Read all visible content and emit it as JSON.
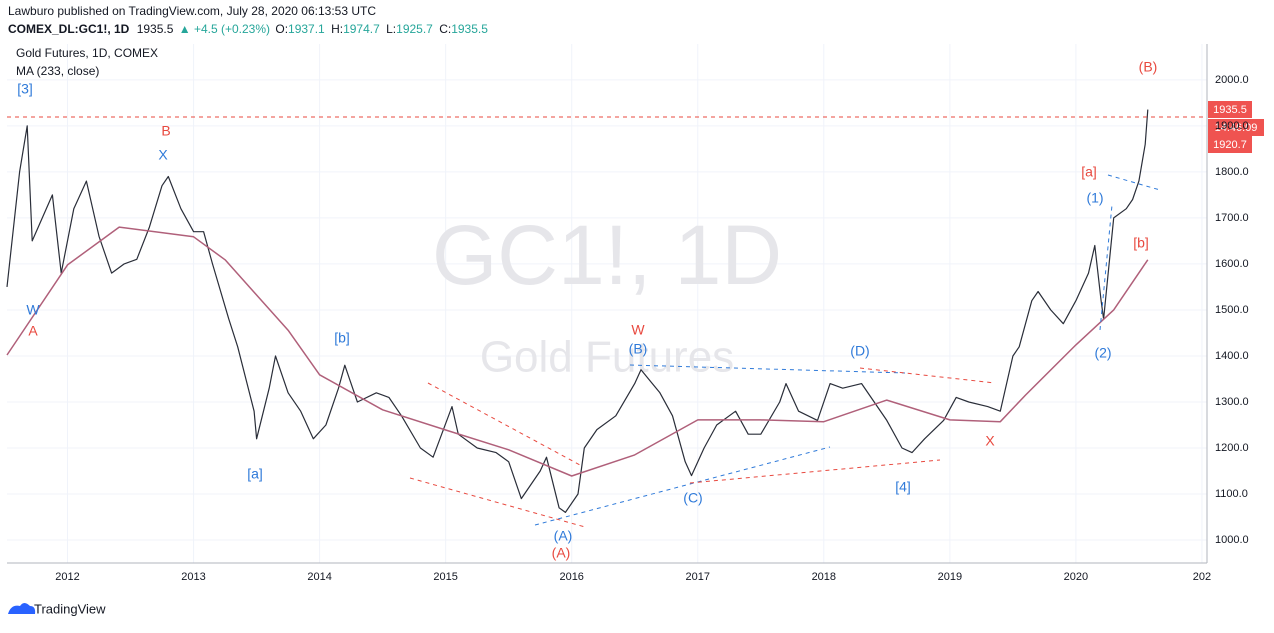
{
  "header": {
    "publisher": "Lawburo published on TradingView.com, July 28, 2020 06:13:53 UTC",
    "symbol": "COMEX_DL:GC1!, 1D",
    "last": "1935.5",
    "change": "▲ +4.5 (+0.23%)",
    "ohlc": [
      {
        "label": "O:",
        "value": "1937.1"
      },
      {
        "label": "H:",
        "value": "1974.7"
      },
      {
        "label": "L:",
        "value": "1925.7"
      },
      {
        "label": "C:",
        "value": "1935.5"
      }
    ]
  },
  "chart_data": {
    "type": "line",
    "watermark": [
      "GC1!, 1D",
      "Gold Futures"
    ],
    "series": [
      {
        "name": "Gold Futures, 1D, COMEX",
        "color": "#2a2e39",
        "x": [
          2011.52,
          2011.62,
          2011.68,
          2011.72,
          2011.8,
          2011.88,
          2011.95,
          2012.05,
          2012.15,
          2012.25,
          2012.35,
          2012.45,
          2012.55,
          2012.65,
          2012.75,
          2012.8,
          2012.9,
          2013.0,
          2013.08,
          2013.15,
          2013.28,
          2013.35,
          2013.48,
          2013.5,
          2013.6,
          2013.65,
          2013.75,
          2013.85,
          2013.95,
          2014.05,
          2014.15,
          2014.2,
          2014.3,
          2014.45,
          2014.55,
          2014.65,
          2014.8,
          2014.9,
          2015.05,
          2015.1,
          2015.25,
          2015.4,
          2015.5,
          2015.6,
          2015.75,
          2015.8,
          2015.9,
          2015.95,
          2016.05,
          2016.1,
          2016.2,
          2016.35,
          2016.5,
          2016.55,
          2016.7,
          2016.8,
          2016.9,
          2016.95,
          2017.05,
          2017.15,
          2017.3,
          2017.4,
          2017.5,
          2017.65,
          2017.7,
          2017.8,
          2017.95,
          2018.05,
          2018.15,
          2018.3,
          2018.4,
          2018.5,
          2018.62,
          2018.7,
          2018.8,
          2018.95,
          2019.05,
          2019.15,
          2019.3,
          2019.4,
          2019.5,
          2019.55,
          2019.65,
          2019.7,
          2019.8,
          2019.9,
          2020.0,
          2020.1,
          2020.15,
          2020.2,
          2020.22,
          2020.3,
          2020.4,
          2020.45,
          2020.5,
          2020.55,
          2020.57
        ],
        "values": [
          1550,
          1800,
          1900,
          1650,
          1700,
          1750,
          1580,
          1720,
          1780,
          1660,
          1580,
          1600,
          1610,
          1680,
          1770,
          1790,
          1720,
          1670,
          1670,
          1600,
          1480,
          1420,
          1280,
          1220,
          1330,
          1400,
          1320,
          1280,
          1220,
          1250,
          1330,
          1380,
          1300,
          1320,
          1310,
          1270,
          1200,
          1180,
          1290,
          1230,
          1200,
          1190,
          1170,
          1090,
          1150,
          1180,
          1070,
          1060,
          1100,
          1200,
          1240,
          1270,
          1340,
          1370,
          1320,
          1270,
          1170,
          1140,
          1200,
          1250,
          1280,
          1230,
          1230,
          1300,
          1340,
          1280,
          1260,
          1340,
          1330,
          1340,
          1300,
          1260,
          1200,
          1190,
          1220,
          1260,
          1310,
          1300,
          1290,
          1280,
          1400,
          1420,
          1520,
          1540,
          1500,
          1470,
          1520,
          1580,
          1640,
          1520,
          1480,
          1700,
          1720,
          1740,
          1780,
          1860,
          1935.5
        ]
      },
      {
        "name": "MA (233, close)",
        "color": "#b0607a",
        "x": [
          2011.52,
          2012.0,
          2012.41,
          2013.0,
          2013.25,
          2013.75,
          2014.0,
          2014.5,
          2015.0,
          2015.5,
          2016.0,
          2016.5,
          2017.0,
          2017.5,
          2018.0,
          2018.5,
          2019.0,
          2019.4,
          2019.6,
          2020.0,
          2020.3,
          2020.57
        ],
        "values": [
          1402,
          1598,
          1680,
          1659,
          1609,
          1456,
          1359,
          1283,
          1239,
          1196,
          1139,
          1185,
          1261,
          1261,
          1257,
          1304,
          1261,
          1257,
          1315,
          1424,
          1500,
          1609
        ]
      }
    ],
    "xlim": [
      2011.52,
      2021.04
    ],
    "xticks": [
      2012,
      2013,
      2014,
      2015,
      2016,
      2017,
      2018,
      2019,
      2020,
      {
        "value": 2021,
        "label": "202"
      }
    ],
    "ylim": [
      950,
      2078
    ],
    "yticks": [
      {
        "value": 1000,
        "label": "1000.0"
      },
      {
        "value": 1100,
        "label": "1100.0"
      },
      {
        "value": 1200,
        "label": "1200.0"
      },
      {
        "value": 1300,
        "label": "1300.0"
      },
      {
        "value": 1400,
        "label": "1400.0"
      },
      {
        "value": 1500,
        "label": "1500.0"
      },
      {
        "value": 1600,
        "label": "1600.0"
      },
      {
        "value": 1700,
        "label": "1700.0"
      },
      {
        "value": 1800,
        "label": "1800.0"
      },
      {
        "value": 1900,
        "label": "1900.0"
      },
      {
        "value": 2000,
        "label": "2000.0"
      }
    ],
    "grid": true,
    "price_tags": [
      "1935.5",
      "14:46:09",
      "1920.7"
    ],
    "annotations": [
      "[3]",
      "W",
      "A",
      "B",
      "X",
      "[b]",
      "[a]",
      "W",
      "(B)",
      "(C)",
      "(A)",
      "(A)",
      "(D)",
      "[4]",
      "X",
      "[a]",
      "(1)",
      "[b]",
      "(2)",
      "(B)"
    ]
  },
  "footer": {
    "brand": "TradingView"
  }
}
